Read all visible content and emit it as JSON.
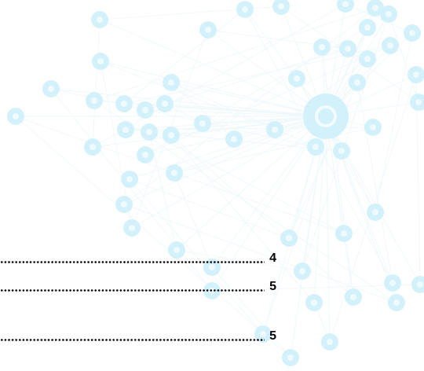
{
  "toc": {
    "entries": [
      {
        "page": 4
      },
      {
        "page": 5
      },
      {
        "page": 5
      }
    ]
  }
}
